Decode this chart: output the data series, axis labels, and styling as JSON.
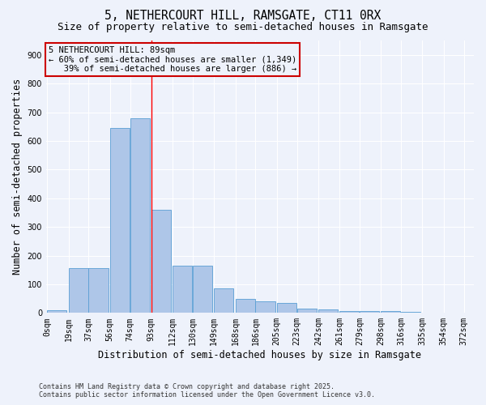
{
  "title": "5, NETHERCOURT HILL, RAMSGATE, CT11 0RX",
  "subtitle": "Size of property relative to semi-detached houses in Ramsgate",
  "xlabel": "Distribution of semi-detached houses by size in Ramsgate",
  "ylabel": "Number of semi-detached properties",
  "footnote1": "Contains HM Land Registry data © Crown copyright and database right 2025.",
  "footnote2": "Contains public sector information licensed under the Open Government Licence v3.0.",
  "annotation_line1": "5 NETHERCOURT HILL: 89sqm",
  "annotation_line2": "← 60% of semi-detached houses are smaller (1,349)",
  "annotation_line3": "   39% of semi-detached houses are larger (886) →",
  "bar_left_edges": [
    0,
    19,
    37,
    56,
    74,
    93,
    112,
    130,
    149,
    168,
    186,
    205,
    223,
    242,
    261,
    279,
    298,
    316,
    335,
    354
  ],
  "bar_heights": [
    10,
    155,
    155,
    645,
    680,
    360,
    165,
    165,
    85,
    50,
    40,
    35,
    15,
    13,
    8,
    7,
    6,
    3,
    1,
    0
  ],
  "bin_width": 18,
  "bar_color": "#aec6e8",
  "bar_edge_color": "#5a9fd4",
  "vline_x": 93,
  "vline_color": "red",
  "ylim": [
    0,
    950
  ],
  "yticks": [
    0,
    100,
    200,
    300,
    400,
    500,
    600,
    700,
    800,
    900
  ],
  "xtick_labels": [
    "0sqm",
    "19sqm",
    "37sqm",
    "56sqm",
    "74sqm",
    "93sqm",
    "112sqm",
    "130sqm",
    "149sqm",
    "168sqm",
    "186sqm",
    "205sqm",
    "223sqm",
    "242sqm",
    "261sqm",
    "279sqm",
    "298sqm",
    "316sqm",
    "335sqm",
    "354sqm",
    "372sqm"
  ],
  "background_color": "#eef2fb",
  "grid_color": "#ffffff",
  "annotation_box_color": "#cc0000",
  "title_fontsize": 10.5,
  "subtitle_fontsize": 9,
  "axis_fontsize": 8.5,
  "tick_fontsize": 7,
  "footnote_fontsize": 6,
  "annotation_fontsize": 7.5
}
